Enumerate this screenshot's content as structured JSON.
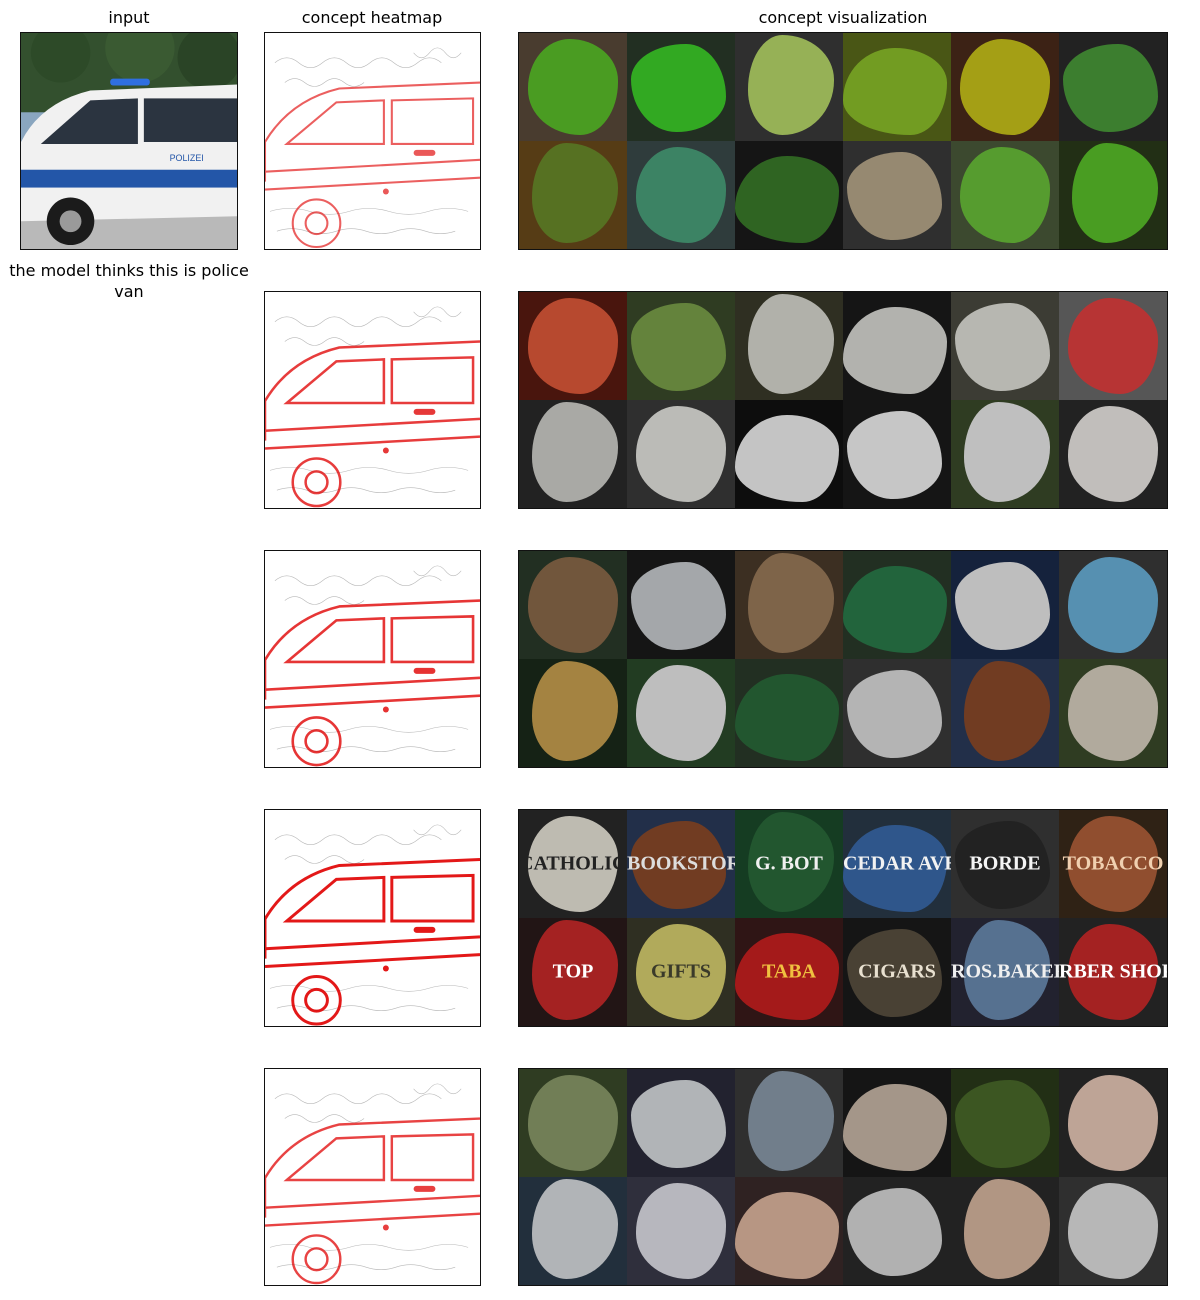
{
  "column_titles": {
    "input": "input",
    "heatmap": "concept heatmap",
    "visualization": "concept visualization"
  },
  "prediction_caption": "the model thinks this is police van",
  "input_image": {
    "description_icon": "police-van-photo",
    "van_text": "POLIZEI",
    "colors": {
      "sky": "#6b8fb0",
      "trees": "#2f4a2a",
      "body": "#f2f2f2",
      "stripe": "#2356a8",
      "road": "#b9b9b9"
    }
  },
  "heatmap_color": "#e00000",
  "rows": [
    {
      "heat_intensity": 0.5,
      "tiles": [
        {
          "bg": "#5a4a3a",
          "fg": "#5bbf2a",
          "blob": ""
        },
        {
          "bg": "#2a3a2a",
          "fg": "#3ecf2a",
          "blob": "b1"
        },
        {
          "bg": "#3a3a3a",
          "fg": "#b7d86a",
          "blob": "b2"
        },
        {
          "bg": "#5a6a1a",
          "fg": "#8bbf2a",
          "blob": "b3"
        },
        {
          "bg": "#4a2a1a",
          "fg": "#c9c21a",
          "blob": ""
        },
        {
          "bg": "#2a2a2a",
          "fg": "#4a9a3a",
          "blob": "b1"
        },
        {
          "bg": "#6a4a1a",
          "fg": "#6a8a2a",
          "blob": "b2"
        },
        {
          "bg": "#3a4a4a",
          "fg": "#4aa07a",
          "blob": ""
        },
        {
          "bg": "#1a1a1a",
          "fg": "#3a7a2a",
          "blob": "b3"
        },
        {
          "bg": "#3a3a3a",
          "fg": "#b8a88a",
          "blob": "b1"
        },
        {
          "bg": "#4a5a3a",
          "fg": "#6abf3a",
          "blob": ""
        },
        {
          "bg": "#2a3a1a",
          "fg": "#5ac02a",
          "blob": "b2"
        }
      ]
    },
    {
      "heat_intensity": 0.75,
      "tiles": [
        {
          "bg": "#5a1a10",
          "fg": "#e05a3a",
          "blob": ""
        },
        {
          "bg": "#3a4a2a",
          "fg": "#7aa04a",
          "blob": "b1"
        },
        {
          "bg": "#3a3a2a",
          "fg": "#d8d8d0",
          "blob": "b2"
        },
        {
          "bg": "#1a1a1a",
          "fg": "#dadad5",
          "blob": "b3"
        },
        {
          "bg": "#4a4a40",
          "fg": "#e0e0d8",
          "blob": "b1"
        },
        {
          "bg": "#6a6a6a",
          "fg": "#e04040",
          "blob": ""
        },
        {
          "bg": "#2a2a2a",
          "fg": "#cfcfca",
          "blob": "b2"
        },
        {
          "bg": "#3a3a3a",
          "fg": "#e5e5e0",
          "blob": ""
        },
        {
          "bg": "#111111",
          "fg": "#f0f0f0",
          "blob": "b3"
        },
        {
          "bg": "#1a1a1a",
          "fg": "#f2f2f2",
          "blob": "b1"
        },
        {
          "bg": "#3a4a2a",
          "fg": "#eaeaea",
          "blob": "b2"
        },
        {
          "bg": "#2a2a2a",
          "fg": "#ece8e4",
          "blob": ""
        }
      ]
    },
    {
      "heat_intensity": 0.8,
      "tiles": [
        {
          "bg": "#2a3a2a",
          "fg": "#8a6a4a",
          "blob": ""
        },
        {
          "bg": "#1a1a1a",
          "fg": "#c8ccd0",
          "blob": "b1"
        },
        {
          "bg": "#4a3a2a",
          "fg": "#9a7a5a",
          "blob": "b2"
        },
        {
          "bg": "#2a3a2a",
          "fg": "#2a7a4a",
          "blob": "b3"
        },
        {
          "bg": "#1a2a4a",
          "fg": "#e8e8e8",
          "blob": "b1"
        },
        {
          "bg": "#3a3a3a",
          "fg": "#6ab0d8",
          "blob": ""
        },
        {
          "bg": "#1a2a1a",
          "fg": "#c8a050",
          "blob": "b2"
        },
        {
          "bg": "#2a4a2a",
          "fg": "#e8e8e8",
          "blob": ""
        },
        {
          "bg": "#2a3a2a",
          "fg": "#2a6a3a",
          "blob": "b3"
        },
        {
          "bg": "#3a3a3a",
          "fg": "#dcdcdc",
          "blob": "b1"
        },
        {
          "bg": "#2a3a5a",
          "fg": "#8a4a2a",
          "blob": "b2"
        },
        {
          "bg": "#3a4a2a",
          "fg": "#d8d0c0",
          "blob": ""
        }
      ]
    },
    {
      "heat_intensity": 1.0,
      "tiles": [
        {
          "bg": "#2a2a2a",
          "fg": "#e8e4d8",
          "blob": "",
          "text": "CATHOLIC C",
          "text_color": "#222222"
        },
        {
          "bg": "#2a3a5a",
          "fg": "#8a4a2a",
          "blob": "b1",
          "text": "BOOKSTORE",
          "text_color": "#dddddd"
        },
        {
          "bg": "#1a4a2a",
          "fg": "#2a6a3a",
          "blob": "b2",
          "text": "G. BOT",
          "text_color": "#f0f0f0"
        },
        {
          "bg": "#2a3a4a",
          "fg": "#3a6aaa",
          "blob": "b3",
          "text": "CEDAR AVE",
          "text_color": "#f2f2f2"
        },
        {
          "bg": "#3a3a3a",
          "fg": "#2a2a2a",
          "blob": "b1",
          "text": "BORDE",
          "text_color": "#f5f5f5"
        },
        {
          "bg": "#3a2a1a",
          "fg": "#b0603a",
          "blob": "",
          "text": "TOBACCO",
          "text_color": "#f0d0b0"
        },
        {
          "bg": "#2a1a1a",
          "fg": "#c82a2a",
          "blob": "b2",
          "text": "TOP",
          "text_color": "#ffffff"
        },
        {
          "bg": "#3a3a2a",
          "fg": "#d8d070",
          "blob": "",
          "text": "GIFTS",
          "text_color": "#3a3a2a"
        },
        {
          "bg": "#3a1a1a",
          "fg": "#c82020",
          "blob": "b3",
          "text": "TABA",
          "text_color": "#f0c040"
        },
        {
          "bg": "#1a1a1a",
          "fg": "#5a5040",
          "blob": "b1",
          "text": "CIGARS",
          "text_color": "#e8e0d0"
        },
        {
          "bg": "#2a2a3a",
          "fg": "#6a8ab0",
          "blob": "b2",
          "text": "ROS.BAKERY",
          "text_color": "#f0f0f0"
        },
        {
          "bg": "#2a2a2a",
          "fg": "#c82a2a",
          "blob": "",
          "text": "RBER SHOP",
          "text_color": "#ffffff"
        }
      ]
    },
    {
      "heat_intensity": 0.7,
      "tiles": [
        {
          "bg": "#3a4a2a",
          "fg": "#8a9a6a",
          "blob": ""
        },
        {
          "bg": "#2a2a3a",
          "fg": "#d8dce0",
          "blob": "b1"
        },
        {
          "bg": "#3a3a3a",
          "fg": "#8a9aaa",
          "blob": "b2"
        },
        {
          "bg": "#1a1a1a",
          "fg": "#c8b8a8",
          "blob": "b3"
        },
        {
          "bg": "#2a3a1a",
          "fg": "#4a6a2a",
          "blob": "b1"
        },
        {
          "bg": "#2a2a2a",
          "fg": "#e8c8b8",
          "blob": ""
        },
        {
          "bg": "#2a3a4a",
          "fg": "#d8dce0",
          "blob": "b2"
        },
        {
          "bg": "#3a3a4a",
          "fg": "#e0e0e8",
          "blob": ""
        },
        {
          "bg": "#3a2a2a",
          "fg": "#e0b8a0",
          "blob": "b3"
        },
        {
          "bg": "#2a2a2a",
          "fg": "#d8d8d8",
          "blob": "b1"
        },
        {
          "bg": "#2a2a2a",
          "fg": "#d8b8a0",
          "blob": "b2"
        },
        {
          "bg": "#3a3a3a",
          "fg": "#e0e0e0",
          "blob": ""
        }
      ]
    }
  ]
}
